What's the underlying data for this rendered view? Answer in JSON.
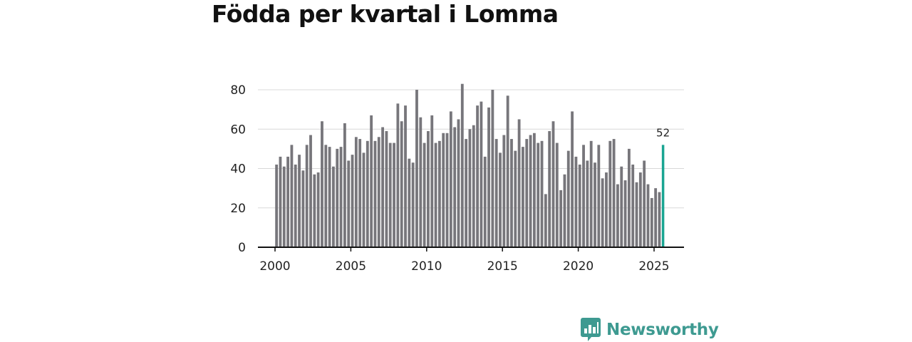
{
  "chart_data": {
    "type": "bar",
    "title": "Födda per kvartal i Lomma",
    "xlabel": "",
    "ylabel": "",
    "ylim": [
      0,
      80
    ],
    "xlim": [
      1999.8,
      2026.3
    ],
    "yticks": [
      0,
      20,
      40,
      60,
      80
    ],
    "xticks": [
      2000,
      2005,
      2010,
      2015,
      2020,
      2025
    ],
    "grid": true,
    "bar_color": "#77767b",
    "highlight_color": "#1aa592",
    "highlight_label": "52",
    "start_year": 2000,
    "values": [
      42,
      46,
      41,
      46,
      52,
      42,
      47,
      39,
      52,
      57,
      37,
      38,
      64,
      52,
      51,
      41,
      50,
      51,
      63,
      44,
      47,
      56,
      55,
      48,
      54,
      67,
      54,
      56,
      61,
      59,
      53,
      53,
      73,
      64,
      72,
      45,
      43,
      80,
      66,
      53,
      59,
      67,
      53,
      54,
      58,
      58,
      69,
      61,
      65,
      83,
      55,
      60,
      62,
      72,
      74,
      46,
      71,
      80,
      55,
      48,
      57,
      77,
      55,
      49,
      65,
      51,
      55,
      57,
      58,
      53,
      54,
      27,
      59,
      64,
      53,
      29,
      37,
      49,
      69,
      46,
      42,
      52,
      44,
      54,
      43,
      52,
      35,
      38,
      54,
      55,
      32,
      41,
      34,
      50,
      42,
      33,
      38,
      44,
      32,
      25,
      30,
      28,
      52
    ]
  },
  "brand": {
    "name": "Newsworthy"
  }
}
